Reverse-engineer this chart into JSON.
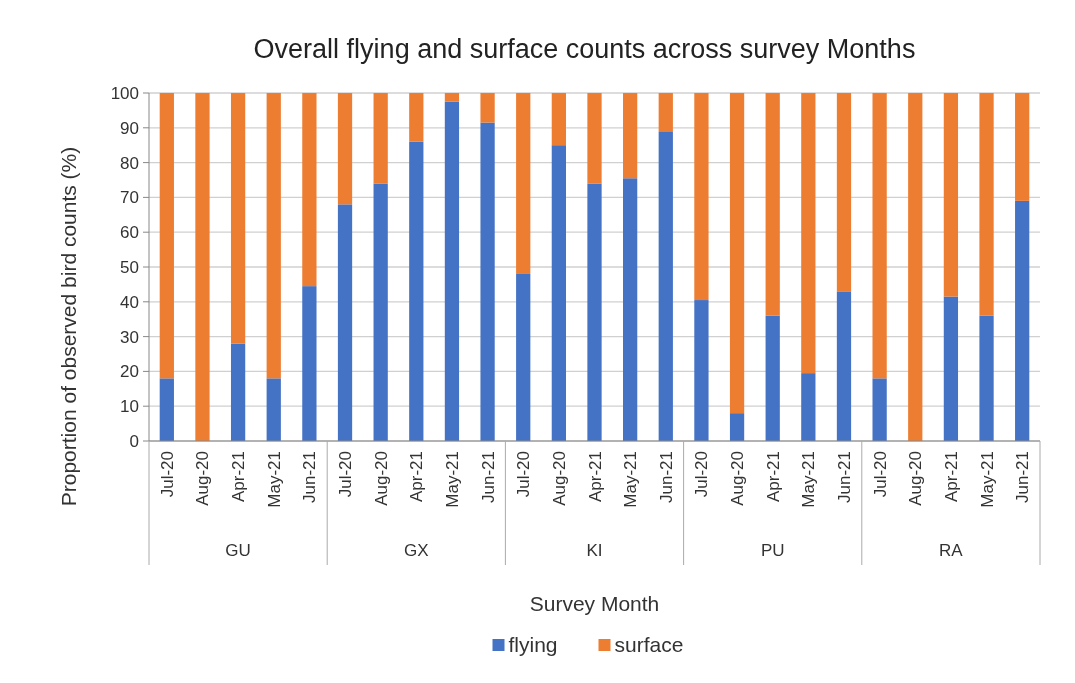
{
  "chart_data": {
    "type": "bar",
    "stacked": true,
    "title": "Overall flying and surface counts across survey Months",
    "xlabel": "Survey Month",
    "ylabel": "Proportion of observed bird counts (%)",
    "categories": [
      "Jul-20",
      "Aug-20",
      "Apr-21",
      "May-21",
      "Jun-21",
      "Jul-20",
      "Aug-20",
      "Apr-21",
      "May-21",
      "Jun-21",
      "Jul-20",
      "Aug-20",
      "Apr-21",
      "May-21",
      "Jun-21",
      "Jul-20",
      "Aug-20",
      "Apr-21",
      "May-21",
      "Jun-21",
      "Jul-20",
      "Aug-20",
      "Apr-21",
      "May-21",
      "Jun-21"
    ],
    "annotations": [
      "GU",
      "GX",
      "KI",
      "PU",
      "RA"
    ],
    "series": [
      {
        "name": "flying",
        "color": "#4472c4",
        "values": [
          18,
          0,
          28,
          18,
          44.5,
          68,
          74,
          86,
          97.5,
          91.5,
          48,
          85,
          74,
          75.5,
          89,
          40.5,
          8,
          36,
          19.5,
          43,
          18,
          0,
          41.5,
          36,
          69
        ]
      },
      {
        "name": "surface",
        "color": "#ed7d31",
        "values": [
          82,
          100,
          72,
          82,
          55.5,
          32,
          26,
          14,
          2.5,
          8.5,
          52,
          15,
          26,
          24.5,
          11,
          59.5,
          92,
          64,
          80.5,
          57,
          82,
          100,
          58.5,
          64,
          31
        ]
      }
    ],
    "ylim": [
      0,
      100
    ],
    "yticks": [
      0,
      10,
      20,
      30,
      40,
      50,
      60,
      70,
      80,
      90,
      100
    ],
    "grid": "y",
    "legend": "bottom"
  }
}
